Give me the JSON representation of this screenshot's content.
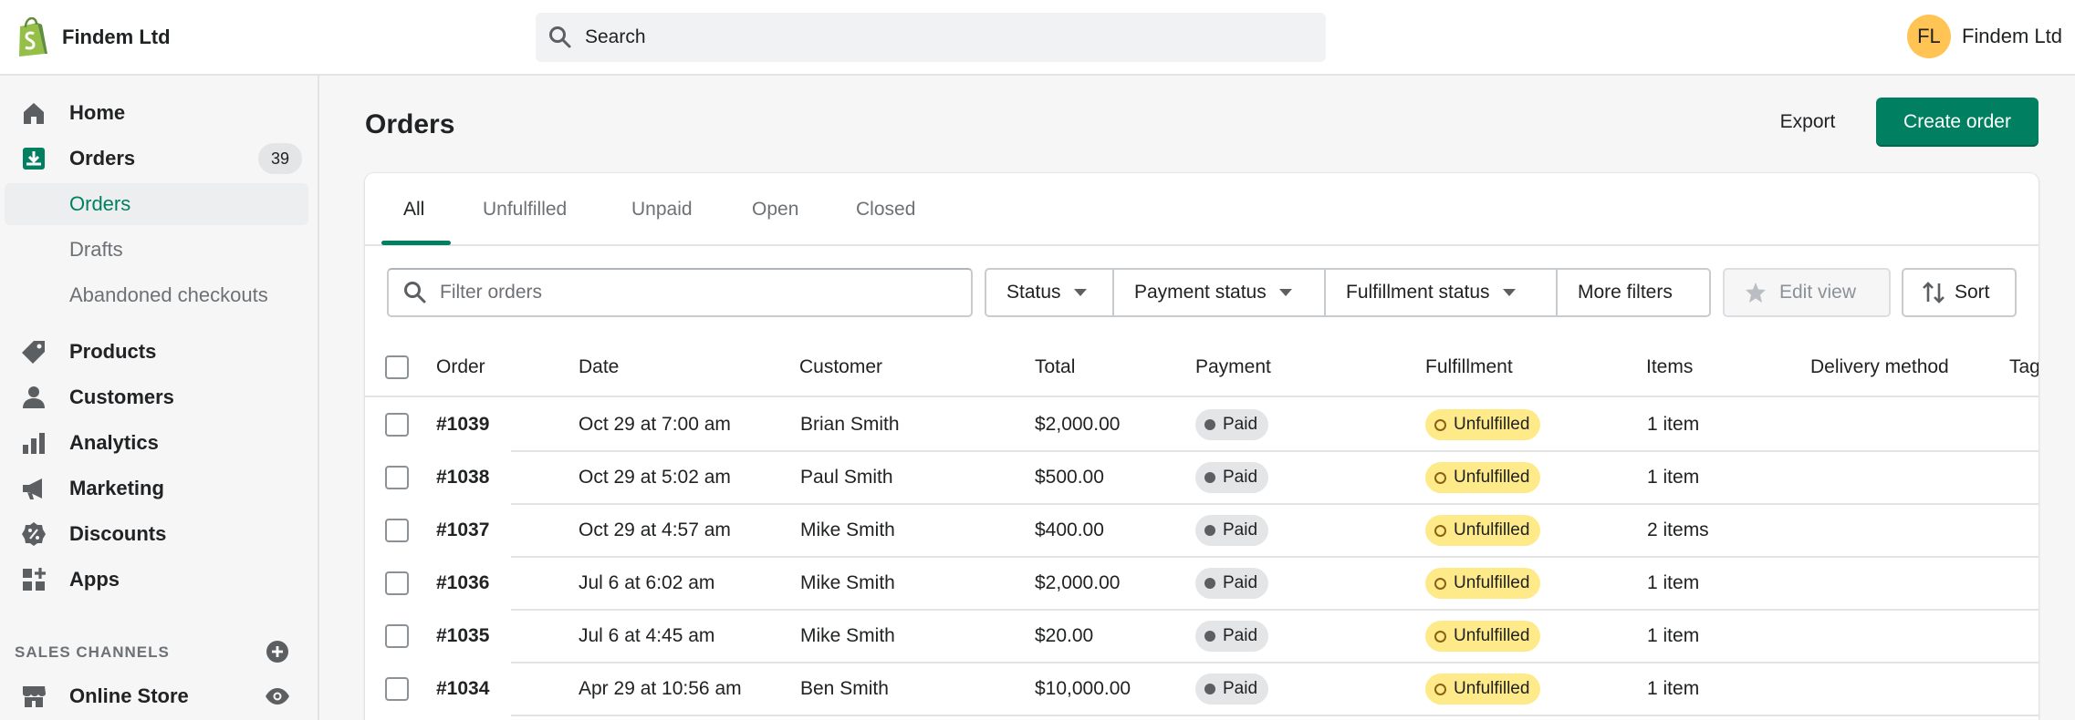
{
  "store": {
    "name": "Findem Ltd"
  },
  "search": {
    "label": "Search"
  },
  "account": {
    "initials": "FL",
    "name": "Findem Ltd"
  },
  "sidebar": {
    "home": "Home",
    "orders": {
      "label": "Orders",
      "count": "39"
    },
    "sub": [
      "Orders",
      "Drafts",
      "Abandoned checkouts"
    ],
    "products": "Products",
    "customers": "Customers",
    "analytics": "Analytics",
    "marketing": "Marketing",
    "discounts": "Discounts",
    "apps": "Apps",
    "sales_channels_title": "SALES CHANNELS",
    "online_store": "Online Store"
  },
  "page": {
    "title": "Orders",
    "export": "Export",
    "create": "Create order"
  },
  "tabs": [
    "All",
    "Unfulfilled",
    "Unpaid",
    "Open",
    "Closed"
  ],
  "filters": {
    "placeholder": "Filter orders",
    "status": "Status",
    "payment_status": "Payment status",
    "fulfillment_status": "Fulfillment status",
    "more": "More filters",
    "edit_view": "Edit view",
    "sort": "Sort"
  },
  "columns": [
    "Order",
    "Date",
    "Customer",
    "Total",
    "Payment",
    "Fulfillment",
    "Items",
    "Delivery method",
    "Tags"
  ],
  "rows": [
    {
      "order": "#1039",
      "date": "Oct 29 at 7:00 am",
      "customer": "Brian Smith",
      "total": "$2,000.00",
      "payment": "Paid",
      "fulfillment": "Unfulfilled",
      "items": "1 item"
    },
    {
      "order": "#1038",
      "date": "Oct 29 at 5:02 am",
      "customer": "Paul Smith",
      "total": "$500.00",
      "payment": "Paid",
      "fulfillment": "Unfulfilled",
      "items": "1 item"
    },
    {
      "order": "#1037",
      "date": "Oct 29 at 4:57 am",
      "customer": "Mike Smith",
      "total": "$400.00",
      "payment": "Paid",
      "fulfillment": "Unfulfilled",
      "items": "2 items"
    },
    {
      "order": "#1036",
      "date": "Jul 6 at 6:02 am",
      "customer": "Mike Smith",
      "total": "$2,000.00",
      "payment": "Paid",
      "fulfillment": "Unfulfilled",
      "items": "1 item"
    },
    {
      "order": "#1035",
      "date": "Jul 6 at 4:45 am",
      "customer": "Mike Smith",
      "total": "$20.00",
      "payment": "Paid",
      "fulfillment": "Unfulfilled",
      "items": "1 item"
    },
    {
      "order": "#1034",
      "date": "Apr 29 at 10:56 am",
      "customer": "Ben Smith",
      "total": "$10,000.00",
      "payment": "Paid",
      "fulfillment": "Unfulfilled",
      "items": "1 item"
    }
  ],
  "colors": {
    "accent": "#008060",
    "unfulfilled": "#ffea8a",
    "paid": "#e4e5e7",
    "avatar": "#ffc453"
  },
  "icons": [
    "shopify-logo-icon",
    "search-icon",
    "home-icon",
    "orders-icon",
    "products-icon",
    "customers-icon",
    "analytics-icon",
    "marketing-icon",
    "discounts-icon",
    "apps-icon",
    "add-circle-icon",
    "online-store-icon",
    "eye-icon",
    "star-icon",
    "sort-icon"
  ]
}
